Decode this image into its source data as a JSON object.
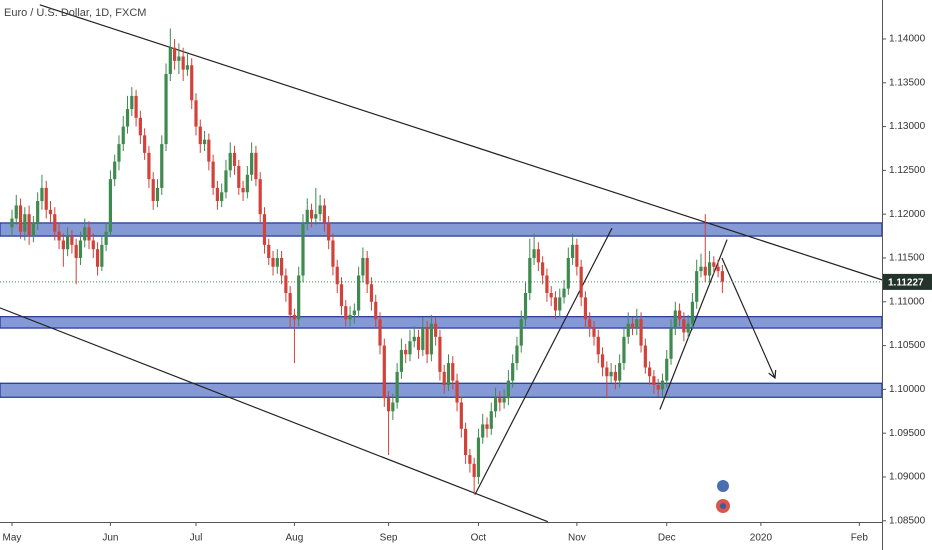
{
  "chart_data": {
    "type": "candlestick",
    "title": "Euro / U.S. Dollar, 1D, FXCM",
    "up_color": "#3f8a4e",
    "down_color": "#d2413a",
    "xlim": [
      -2.8,
      203.3
    ],
    "xticks": [
      {
        "value": 0,
        "label": "May"
      },
      {
        "value": 23,
        "label": "Jun"
      },
      {
        "value": 43,
        "label": "Jul"
      },
      {
        "value": 66,
        "label": "Aug"
      },
      {
        "value": 88,
        "label": "Sep"
      },
      {
        "value": 109,
        "label": "Oct"
      },
      {
        "value": 132,
        "label": "Nov"
      },
      {
        "value": 153,
        "label": "Dec"
      },
      {
        "value": 175,
        "label": "2020"
      },
      {
        "value": 198,
        "label": "Feb"
      }
    ],
    "ylim": [
      1.08486,
      1.14445
    ],
    "yticks": [
      {
        "value": 1.085,
        "label": "1.08500"
      },
      {
        "value": 1.09,
        "label": "1.09000"
      },
      {
        "value": 1.095,
        "label": "1.09500"
      },
      {
        "value": 1.1,
        "label": "1.10000"
      },
      {
        "value": 1.105,
        "label": "1.10500"
      },
      {
        "value": 1.11,
        "label": "1.11000"
      },
      {
        "value": 1.115,
        "label": "1.11500"
      },
      {
        "value": 1.12,
        "label": "1.12000"
      },
      {
        "value": 1.125,
        "label": "1.12500"
      },
      {
        "value": 1.13,
        "label": "1.13000"
      },
      {
        "value": 1.135,
        "label": "1.13500"
      },
      {
        "value": 1.14,
        "label": "1.14000"
      }
    ],
    "last_price": 1.11227,
    "zones": [
      [
        1.1175,
        1.119
      ],
      [
        1.107,
        1.1083
      ],
      [
        1.0991,
        1.1007
      ]
    ],
    "trendlines": [
      {
        "x": [
          6.5,
          203.3
        ],
        "y": [
          1.1439,
          1.1125
        ]
      },
      {
        "x": [
          -2.8,
          125.2
        ],
        "y": [
          1.1093,
          1.0849
        ]
      },
      {
        "x": [
          108.2,
          140.2
        ],
        "y": [
          1.088,
          1.1184
        ]
      },
      {
        "x": [
          151.4,
          167.1
        ],
        "y": [
          1.0977,
          1.1171
        ]
      }
    ],
    "arrows": [
      {
        "x": [
          165.9,
          178.3
        ],
        "y": [
          1.115,
          1.1013
        ]
      }
    ],
    "candles": [
      [
        1.1185,
        1.1205,
        1.1175,
        1.1195
      ],
      [
        1.1195,
        1.1222,
        1.1188,
        1.121
      ],
      [
        1.121,
        1.1218,
        1.1172,
        1.118
      ],
      [
        1.118,
        1.1208,
        1.117,
        1.12
      ],
      [
        1.12,
        1.121,
        1.1165,
        1.1175
      ],
      [
        1.1175,
        1.1198,
        1.1168,
        1.119
      ],
      [
        1.119,
        1.1225,
        1.1182,
        1.1215
      ],
      [
        1.1215,
        1.1245,
        1.1205,
        1.123
      ],
      [
        1.123,
        1.1238,
        1.1195,
        1.1205
      ],
      [
        1.1205,
        1.1215,
        1.119,
        1.12
      ],
      [
        1.12,
        1.1208,
        1.117,
        1.118
      ],
      [
        1.118,
        1.119,
        1.116,
        1.117
      ],
      [
        1.117,
        1.1178,
        1.114,
        1.116
      ],
      [
        1.116,
        1.1185,
        1.1152,
        1.1175
      ],
      [
        1.1175,
        1.1182,
        1.1155,
        1.1165
      ],
      [
        1.1165,
        1.1172,
        1.112,
        1.115
      ],
      [
        1.115,
        1.118,
        1.1142,
        1.117
      ],
      [
        1.117,
        1.1195,
        1.1162,
        1.1185
      ],
      [
        1.1185,
        1.1192,
        1.116,
        1.117
      ],
      [
        1.117,
        1.1178,
        1.115,
        1.116
      ],
      [
        1.116,
        1.1168,
        1.113,
        1.114
      ],
      [
        1.114,
        1.1175,
        1.1135,
        1.1165
      ],
      [
        1.1165,
        1.119,
        1.1158,
        1.118
      ],
      [
        1.118,
        1.125,
        1.1175,
        1.124
      ],
      [
        1.124,
        1.1268,
        1.1232,
        1.126
      ],
      [
        1.126,
        1.129,
        1.125,
        1.128
      ],
      [
        1.128,
        1.1312,
        1.1272,
        1.13
      ],
      [
        1.13,
        1.1335,
        1.1292,
        1.132
      ],
      [
        1.132,
        1.1345,
        1.1312,
        1.1335
      ],
      [
        1.1335,
        1.1342,
        1.13,
        1.131
      ],
      [
        1.131,
        1.1318,
        1.128,
        1.129
      ],
      [
        1.129,
        1.1298,
        1.1262,
        1.127
      ],
      [
        1.127,
        1.1278,
        1.123,
        1.124
      ],
      [
        1.124,
        1.1248,
        1.1205,
        1.1215
      ],
      [
        1.1215,
        1.124,
        1.1208,
        1.123
      ],
      [
        1.123,
        1.129,
        1.1222,
        1.128
      ],
      [
        1.128,
        1.1372,
        1.1272,
        1.136
      ],
      [
        1.136,
        1.1412,
        1.1352,
        1.139
      ],
      [
        1.139,
        1.14,
        1.1365,
        1.1375
      ],
      [
        1.1375,
        1.1395,
        1.136,
        1.138
      ],
      [
        1.138,
        1.139,
        1.1352,
        1.1365
      ],
      [
        1.1365,
        1.1385,
        1.1358,
        1.137
      ],
      [
        1.137,
        1.1378,
        1.132,
        1.133
      ],
      [
        1.133,
        1.1338,
        1.129,
        1.13
      ],
      [
        1.13,
        1.1308,
        1.127,
        1.128
      ],
      [
        1.128,
        1.1295,
        1.1272,
        1.1285
      ],
      [
        1.1285,
        1.1292,
        1.125,
        1.126
      ],
      [
        1.126,
        1.1268,
        1.1222,
        1.123
      ],
      [
        1.123,
        1.1238,
        1.1205,
        1.1215
      ],
      [
        1.1215,
        1.1235,
        1.1208,
        1.1225
      ],
      [
        1.1225,
        1.1262,
        1.1218,
        1.125
      ],
      [
        1.125,
        1.1282,
        1.1242,
        1.127
      ],
      [
        1.127,
        1.1278,
        1.1245,
        1.1255
      ],
      [
        1.1255,
        1.1262,
        1.1222,
        1.123
      ],
      [
        1.123,
        1.1238,
        1.1215,
        1.1225
      ],
      [
        1.1225,
        1.1255,
        1.1218,
        1.1245
      ],
      [
        1.1245,
        1.1282,
        1.1238,
        1.127
      ],
      [
        1.127,
        1.1278,
        1.1232,
        1.124
      ],
      [
        1.124,
        1.1248,
        1.119,
        1.12
      ],
      [
        1.12,
        1.1208,
        1.1155,
        1.1165
      ],
      [
        1.1165,
        1.1172,
        1.1142,
        1.115
      ],
      [
        1.115,
        1.1158,
        1.113,
        1.114
      ],
      [
        1.114,
        1.116,
        1.1132,
        1.115
      ],
      [
        1.115,
        1.1158,
        1.112,
        1.113
      ],
      [
        1.113,
        1.1138,
        1.11,
        1.111
      ],
      [
        1.111,
        1.1118,
        1.107,
        1.1085
      ],
      [
        1.1085,
        1.1092,
        1.103,
        1.108
      ],
      [
        1.108,
        1.114,
        1.1072,
        1.113
      ],
      [
        1.113,
        1.12,
        1.1122,
        1.119
      ],
      [
        1.119,
        1.1218,
        1.1182,
        1.1205
      ],
      [
        1.1205,
        1.1212,
        1.1185,
        1.1195
      ],
      [
        1.1195,
        1.123,
        1.1188,
        1.12
      ],
      [
        1.12,
        1.1222,
        1.1192,
        1.121
      ],
      [
        1.121,
        1.1218,
        1.118,
        1.119
      ],
      [
        1.119,
        1.1198,
        1.116,
        1.117
      ],
      [
        1.117,
        1.1178,
        1.113,
        1.114
      ],
      [
        1.114,
        1.1148,
        1.111,
        1.112
      ],
      [
        1.112,
        1.1128,
        1.1085,
        1.1095
      ],
      [
        1.1095,
        1.1102,
        1.1072,
        1.108
      ],
      [
        1.108,
        1.1095,
        1.1072,
        1.1085
      ],
      [
        1.1085,
        1.1098,
        1.1075,
        1.109
      ],
      [
        1.109,
        1.114,
        1.1082,
        1.113
      ],
      [
        1.113,
        1.1162,
        1.1122,
        1.115
      ],
      [
        1.115,
        1.1158,
        1.111,
        1.112
      ],
      [
        1.112,
        1.1128,
        1.109,
        1.11
      ],
      [
        1.11,
        1.1108,
        1.107,
        1.108
      ],
      [
        1.108,
        1.1088,
        1.104,
        1.105
      ],
      [
        1.105,
        1.1058,
        1.098,
        1.099
      ],
      [
        1.099,
        1.0998,
        1.0925,
        1.0975
      ],
      [
        1.0975,
        1.0995,
        1.0965,
        1.0985
      ],
      [
        1.0985,
        1.103,
        1.0978,
        1.102
      ],
      [
        1.102,
        1.1058,
        1.1012,
        1.1045
      ],
      [
        1.1045,
        1.1052,
        1.103,
        1.104
      ],
      [
        1.104,
        1.1068,
        1.1032,
        1.1055
      ],
      [
        1.1055,
        1.1072,
        1.1048,
        1.106
      ],
      [
        1.106,
        1.1068,
        1.1035,
        1.1045
      ],
      [
        1.1045,
        1.1082,
        1.1038,
        1.107
      ],
      [
        1.107,
        1.1078,
        1.103,
        1.104
      ],
      [
        1.104,
        1.1085,
        1.1032,
        1.1075
      ],
      [
        1.1075,
        1.1082,
        1.105,
        1.106
      ],
      [
        1.106,
        1.1068,
        1.101,
        1.102
      ],
      [
        1.102,
        1.1028,
        1.0995,
        1.1005
      ],
      [
        1.1005,
        1.104,
        1.0998,
        1.103
      ],
      [
        1.103,
        1.1038,
        1.1,
        1.101
      ],
      [
        1.101,
        1.1018,
        1.0975,
        1.0985
      ],
      [
        1.0985,
        1.0992,
        1.0945,
        1.0955
      ],
      [
        1.0955,
        1.0962,
        1.0915,
        1.0925
      ],
      [
        1.0925,
        1.0932,
        1.0905,
        1.0915
      ],
      [
        1.0915,
        1.0922,
        1.088,
        1.09
      ],
      [
        1.09,
        1.0955,
        1.0892,
        1.0945
      ],
      [
        1.0945,
        1.0972,
        1.0938,
        1.096
      ],
      [
        1.096,
        1.0968,
        1.0945,
        1.0955
      ],
      [
        1.0955,
        1.0985,
        1.0948,
        1.0975
      ],
      [
        1.0975,
        1.1002,
        1.0968,
        1.099
      ],
      [
        1.099,
        1.0998,
        1.0975,
        1.0985
      ],
      [
        1.0985,
        1.1,
        1.0978,
        1.099
      ],
      [
        1.099,
        1.1022,
        1.0982,
        1.101
      ],
      [
        1.101,
        1.104,
        1.1002,
        1.103
      ],
      [
        1.103,
        1.106,
        1.1022,
        1.105
      ],
      [
        1.105,
        1.109,
        1.1042,
        1.108
      ],
      [
        1.108,
        1.1122,
        1.1072,
        1.111
      ],
      [
        1.111,
        1.1172,
        1.1102,
        1.115
      ],
      [
        1.115,
        1.1178,
        1.1142,
        1.116
      ],
      [
        1.116,
        1.1168,
        1.1135,
        1.1145
      ],
      [
        1.1145,
        1.1152,
        1.112,
        1.113
      ],
      [
        1.113,
        1.1138,
        1.11,
        1.111
      ],
      [
        1.111,
        1.1118,
        1.1095,
        1.1105
      ],
      [
        1.1105,
        1.1112,
        1.108,
        1.109
      ],
      [
        1.109,
        1.1115,
        1.1082,
        1.1105
      ],
      [
        1.1105,
        1.1125,
        1.1098,
        1.1115
      ],
      [
        1.1115,
        1.1162,
        1.1108,
        1.115
      ],
      [
        1.115,
        1.1178,
        1.1142,
        1.1165
      ],
      [
        1.1165,
        1.1172,
        1.113,
        1.114
      ],
      [
        1.114,
        1.1148,
        1.1095,
        1.1105
      ],
      [
        1.1105,
        1.1112,
        1.107,
        1.108
      ],
      [
        1.108,
        1.1088,
        1.106,
        1.107
      ],
      [
        1.107,
        1.1078,
        1.105,
        1.106
      ],
      [
        1.106,
        1.1068,
        1.103,
        1.104
      ],
      [
        1.104,
        1.1048,
        1.1015,
        1.1025
      ],
      [
        1.1025,
        1.1032,
        1.099,
        1.1015
      ],
      [
        1.1015,
        1.103,
        1.1008,
        1.102
      ],
      [
        1.102,
        1.1028,
        1.1,
        1.101
      ],
      [
        1.101,
        1.104,
        1.1002,
        1.103
      ],
      [
        1.103,
        1.107,
        1.1022,
        1.106
      ],
      [
        1.106,
        1.1088,
        1.1052,
        1.1075
      ],
      [
        1.1075,
        1.1082,
        1.1062,
        1.107
      ],
      [
        1.107,
        1.1092,
        1.1062,
        1.108
      ],
      [
        1.108,
        1.1088,
        1.1042,
        1.105
      ],
      [
        1.105,
        1.1058,
        1.1018,
        1.1025
      ],
      [
        1.1025,
        1.1032,
        1.1005,
        1.1015
      ],
      [
        1.1015,
        1.1022,
        1.0995,
        1.1005
      ],
      [
        1.1005,
        1.1012,
        1.0992,
        1.1
      ],
      [
        1.1,
        1.1018,
        1.0992,
        1.101
      ],
      [
        1.101,
        1.1045,
        1.1002,
        1.1035
      ],
      [
        1.1035,
        1.108,
        1.1028,
        1.107
      ],
      [
        1.107,
        1.11,
        1.1062,
        1.109
      ],
      [
        1.109,
        1.1098,
        1.1072,
        1.108
      ],
      [
        1.108,
        1.1088,
        1.1055,
        1.1065
      ],
      [
        1.1065,
        1.1085,
        1.1058,
        1.1075
      ],
      [
        1.1075,
        1.111,
        1.1068,
        1.11
      ],
      [
        1.11,
        1.1148,
        1.1092,
        1.1135
      ],
      [
        1.1135,
        1.1155,
        1.1128,
        1.114
      ],
      [
        1.114,
        1.12,
        1.1122,
        1.113
      ],
      [
        1.113,
        1.1158,
        1.1122,
        1.1145
      ],
      [
        1.1145,
        1.1152,
        1.1132,
        1.114
      ],
      [
        1.114,
        1.1148,
        1.1128,
        1.1135
      ],
      [
        1.1135,
        1.1142,
        1.111,
        1.1123
      ]
    ]
  }
}
